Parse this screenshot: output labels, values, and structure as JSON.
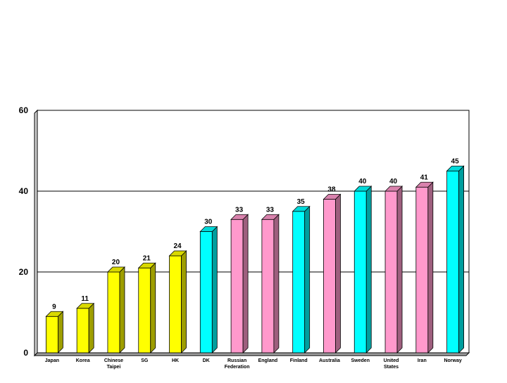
{
  "chart_data": {
    "type": "bar",
    "categories": [
      "Japan",
      "Korea",
      "Chinese Taipei",
      "SG",
      "HK",
      "DK",
      "Russian Federation",
      "England",
      "Finland",
      "Australia",
      "Sweden",
      "United States",
      "Iran",
      "Norway"
    ],
    "values": [
      9,
      11,
      20,
      21,
      24,
      30,
      33,
      33,
      35,
      38,
      40,
      40,
      41,
      45
    ],
    "bar_colors": [
      "#ffff00",
      "#ffff00",
      "#ffff00",
      "#ffff00",
      "#ffff00",
      "#00ffff",
      "#ff99cc",
      "#ff99cc",
      "#00ffff",
      "#ff99cc",
      "#00ffff",
      "#ff99cc",
      "#ff99cc",
      "#00ffff"
    ],
    "ylim": [
      0,
      60
    ],
    "yticks": [
      0,
      20,
      40,
      60
    ],
    "grid": true,
    "title": "",
    "xlabel": "",
    "ylabel": ""
  }
}
